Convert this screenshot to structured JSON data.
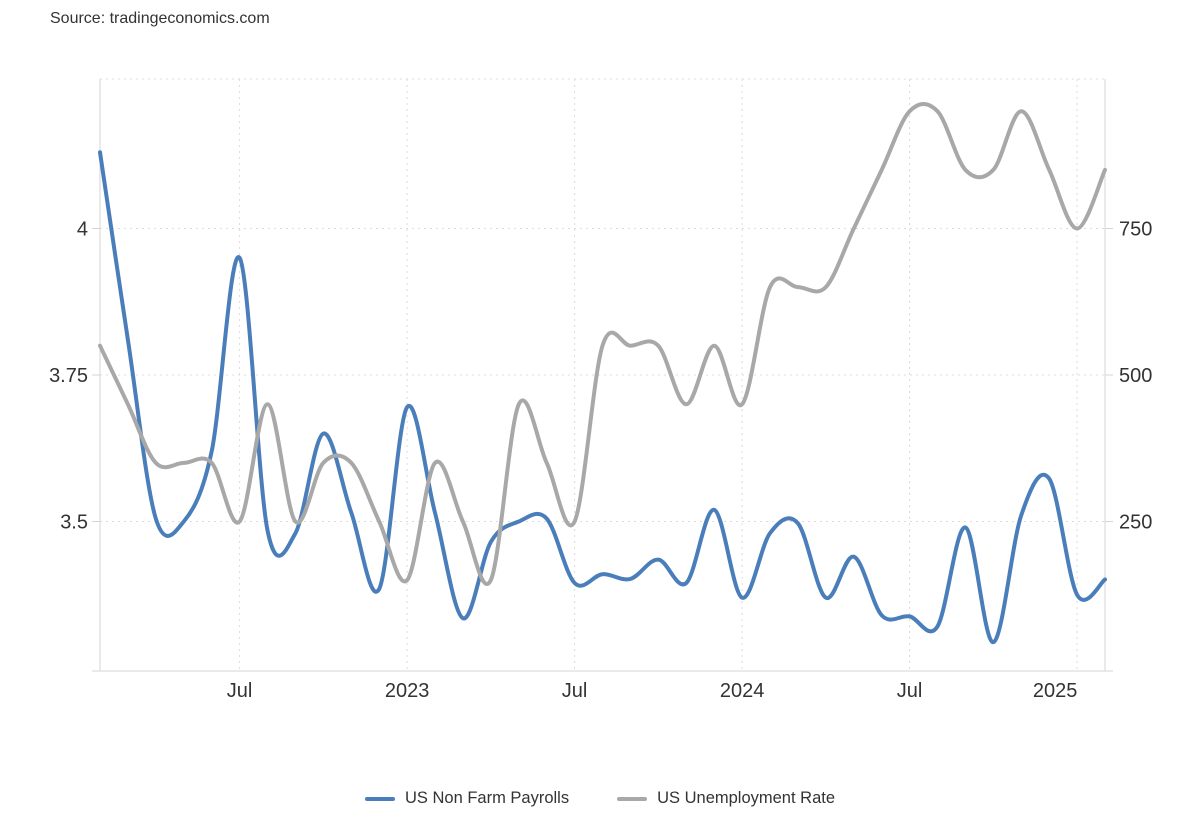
{
  "source": {
    "label": "Source: tradingeconomics.com"
  },
  "legend": {
    "items": [
      {
        "label": "US Non Farm Payrolls",
        "color": "#4a7ebb"
      },
      {
        "label": "US Unemployment Rate",
        "color": "#a8a8a8"
      }
    ]
  },
  "chart_data": {
    "type": "line",
    "style": "smooth-spline, dotted grid, dual y-axes",
    "x": [
      "2022-02",
      "2022-03",
      "2022-04",
      "2022-05",
      "2022-06",
      "2022-07",
      "2022-08",
      "2022-09",
      "2022-10",
      "2022-11",
      "2022-12",
      "2023-01",
      "2023-02",
      "2023-03",
      "2023-04",
      "2023-05",
      "2023-06",
      "2023-07",
      "2023-08",
      "2023-09",
      "2023-10",
      "2023-11",
      "2023-12",
      "2024-01",
      "2024-02",
      "2024-03",
      "2024-04",
      "2024-05",
      "2024-06",
      "2024-07",
      "2024-08",
      "2024-09",
      "2024-10",
      "2024-11",
      "2024-12",
      "2025-01",
      "2025-02"
    ],
    "series": [
      {
        "name": "US Non Farm Payrolls",
        "axis": "right",
        "color": "#4a7ebb",
        "units": "thousand",
        "values": [
          880,
          560,
          255,
          250,
          370,
          700,
          235,
          230,
          400,
          265,
          135,
          445,
          265,
          85,
          215,
          250,
          255,
          145,
          160,
          152,
          185,
          145,
          270,
          120,
          230,
          247,
          120,
          190,
          90,
          88,
          71,
          240,
          44,
          261,
          323,
          125,
          151
        ]
      },
      {
        "name": "US Unemployment Rate",
        "axis": "left",
        "color": "#a8a8a8",
        "units": "percent",
        "values": [
          3.8,
          3.7,
          3.6,
          3.6,
          3.6,
          3.5,
          3.7,
          3.5,
          3.6,
          3.6,
          3.5,
          3.4,
          3.6,
          3.5,
          3.4,
          3.7,
          3.6,
          3.5,
          3.8,
          3.8,
          3.8,
          3.7,
          3.8,
          3.7,
          3.9,
          3.9,
          3.9,
          4.0,
          4.1,
          4.2,
          4.2,
          4.1,
          4.1,
          4.2,
          4.1,
          4.0,
          4.1
        ]
      }
    ],
    "left_axis": {
      "tick_values": [
        3.5,
        3.75,
        4
      ],
      "tick_labels": [
        "3.5",
        "3.75",
        "4"
      ],
      "implied_range": [
        3.25,
        4.27
      ]
    },
    "right_axis": {
      "tick_values": [
        250,
        500,
        750
      ],
      "tick_labels": [
        "250",
        "500",
        "750"
      ],
      "implied_range": [
        0,
        1010
      ]
    },
    "x_ticks": [
      {
        "index": 5,
        "label": "Jul"
      },
      {
        "index": 11,
        "label": "2023"
      },
      {
        "index": 17,
        "label": "Jul"
      },
      {
        "index": 23,
        "label": "2024"
      },
      {
        "index": 29,
        "label": "Jul"
      },
      {
        "index": 35,
        "label": "2025"
      }
    ],
    "grid": "on",
    "legend_position": "bottom-center",
    "colors": {
      "grid_line": "#dcdcdc",
      "axis_line": "#d4d4d4",
      "tick_text": "#333333"
    }
  }
}
